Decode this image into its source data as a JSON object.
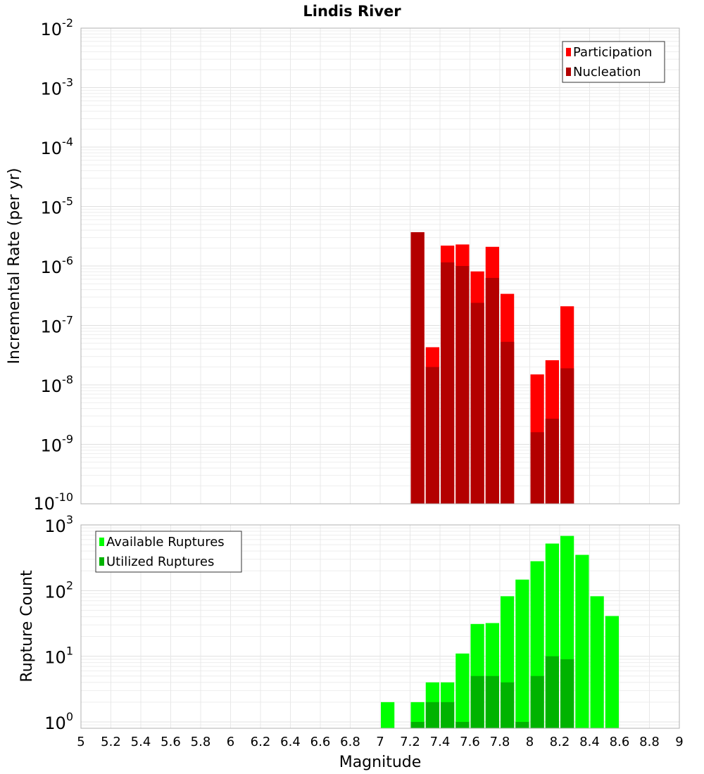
{
  "chart_data": [
    {
      "type": "bar",
      "title": "Lindis River",
      "xlabel": "",
      "ylabel": "Incremental Rate (per yr)",
      "yscale": "log",
      "ylim": [
        1e-10,
        0.01
      ],
      "xlim": [
        5,
        9
      ],
      "grid": true,
      "legend_position": "top-right",
      "x": [
        7.25,
        7.35,
        7.45,
        7.55,
        7.65,
        7.75,
        7.85,
        8.05,
        8.15,
        8.25
      ],
      "series": [
        {
          "name": "Participation",
          "color": "#ff0000",
          "values": [
            3.7e-06,
            4.3e-08,
            2.2e-06,
            2.3e-06,
            8.1e-07,
            2.1e-06,
            3.4e-07,
            1.5e-08,
            2.6e-08,
            2.1e-07
          ]
        },
        {
          "name": "Nucleation",
          "color": "#b30000",
          "values": [
            3.7e-06,
            2e-08,
            1.15e-06,
            1e-06,
            2.4e-07,
            6.3e-07,
            5.3e-08,
            1.6e-09,
            2.7e-09,
            1.9e-08
          ]
        }
      ],
      "ytick_exponents": [
        "-10",
        "-9",
        "-8",
        "-7",
        "-6",
        "-5",
        "-4",
        "-3",
        "-2"
      ]
    },
    {
      "type": "bar",
      "title": "",
      "xlabel": "Magnitude",
      "ylabel": "Rupture Count",
      "yscale": "log",
      "ylim": [
        0.8,
        1000
      ],
      "xlim": [
        5,
        9
      ],
      "grid": true,
      "legend_position": "top-left",
      "x": [
        7.05,
        7.25,
        7.35,
        7.45,
        7.55,
        7.65,
        7.75,
        7.85,
        7.95,
        8.05,
        8.15,
        8.25,
        8.35,
        8.45,
        8.55
      ],
      "series": [
        {
          "name": "Available Ruptures",
          "color": "#00ff00",
          "values": [
            2,
            2,
            4,
            4,
            11,
            31,
            32,
            82,
            147,
            280,
            520,
            680,
            350,
            82,
            41
          ]
        },
        {
          "name": "Utilized Ruptures",
          "color": "#00b300",
          "values": [
            0,
            1,
            2,
            2,
            1,
            5,
            5,
            4,
            1,
            5,
            10,
            9,
            0,
            0,
            0
          ]
        }
      ],
      "ytick_exponents": [
        "0",
        "1",
        "2",
        "3"
      ],
      "xticks": [
        "5",
        "5.2",
        "5.4",
        "5.6",
        "5.8",
        "6",
        "6.2",
        "6.4",
        "6.6",
        "6.8",
        "7",
        "7.2",
        "7.4",
        "7.6",
        "7.8",
        "8",
        "8.2",
        "8.4",
        "8.6",
        "8.8",
        "9"
      ]
    }
  ],
  "tick_base": "10"
}
